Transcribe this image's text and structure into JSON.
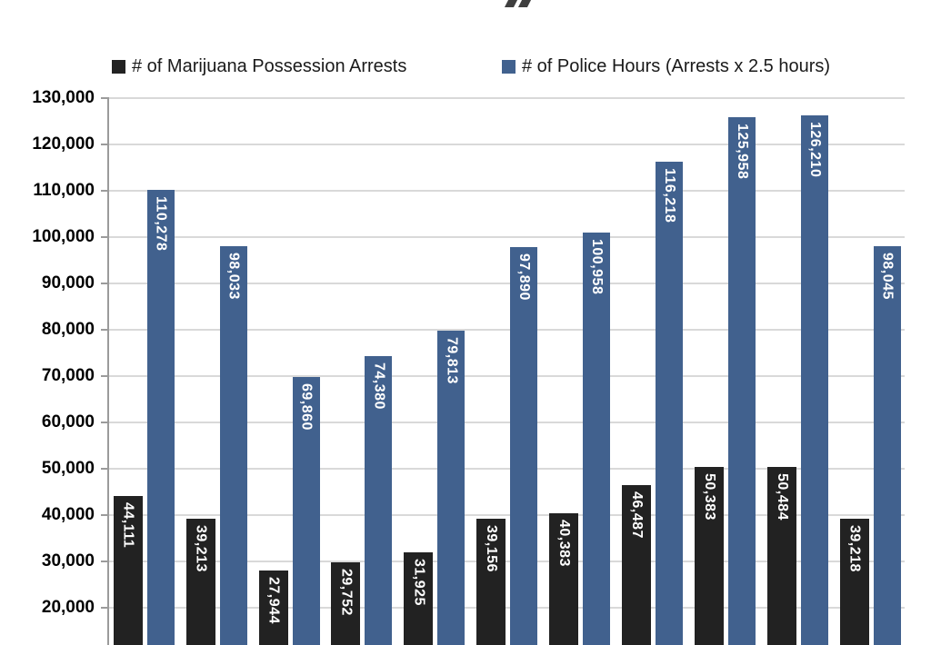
{
  "page": {
    "background": "#FFFFFF"
  },
  "cutoff_title": {
    "description": "bottom fragment of a cropped chart title glyph",
    "glyph_fragment": "”",
    "color": "#3F3F3F"
  },
  "legend": {
    "items": [
      {
        "label": "# of Marijuana Possession Arrests",
        "color": "#222222"
      },
      {
        "label": "# of Police Hours (Arrests x 2.5 hours)",
        "color": "#41618E"
      }
    ]
  },
  "y_axis": {
    "tick_labels": [
      "130,000",
      "120,000",
      "110,000",
      "100,000",
      "90,000",
      "80,000",
      "70,000",
      "60,000",
      "50,000",
      "40,000",
      "30,000",
      "20,000"
    ],
    "tick_values": [
      130000,
      120000,
      110000,
      100000,
      90000,
      80000,
      70000,
      60000,
      50000,
      40000,
      30000,
      20000
    ],
    "max": 130000,
    "step": 10000
  },
  "chart_data": {
    "type": "bar",
    "title": "",
    "x_axis_visible": false,
    "categories": [
      "",
      "",
      "",
      "",
      "",
      "",
      "",
      "",
      "",
      "",
      ""
    ],
    "series": [
      {
        "name": "# of Marijuana Possession Arrests",
        "color": "#222222",
        "values": [
          44111,
          39213,
          27944,
          29752,
          31925,
          39156,
          40383,
          46487,
          50383,
          50484,
          39218
        ],
        "data_labels": [
          "44,111",
          "39,213",
          "27,944",
          "29,752",
          "31,925",
          "39,156",
          "40,383",
          "46,487",
          "50,383",
          "50,484",
          "39,218"
        ]
      },
      {
        "name": "# of Police Hours (Arrests x 2.5 hours)",
        "color": "#41618E",
        "values": [
          110278,
          98033,
          69860,
          74380,
          79813,
          97890,
          100958,
          116218,
          125958,
          126210,
          98045
        ],
        "data_labels": [
          "110,278",
          "98,033",
          "69,860",
          "74,380",
          "79,813",
          "97,890",
          "100,958",
          "116,218",
          "125,958",
          "126,210",
          "98,045"
        ]
      }
    ],
    "ylim_visible": [
      20000,
      130000
    ],
    "grid": true,
    "legend_position": "top",
    "data_label_rotation": "vertical",
    "data_label_position": "inside-end",
    "colors": {
      "gridline": "#D9D9D9",
      "axis_line": "#9B9B9B",
      "data_label_text": "#FFFFFF"
    }
  }
}
